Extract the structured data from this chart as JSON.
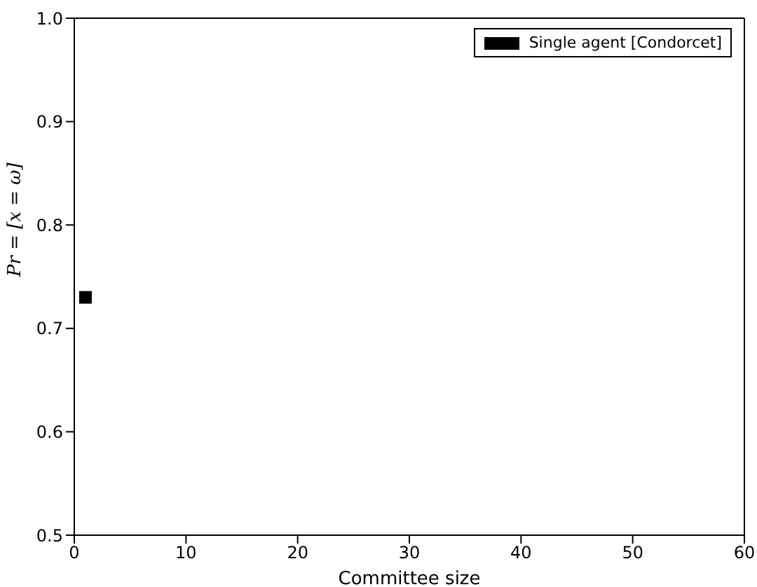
{
  "chart_data": {
    "type": "scatter",
    "xlabel": "Committee size",
    "ylabel": "Pr = [x = ω]",
    "x": [
      1
    ],
    "series": [
      {
        "name": "Single agent [Condorcet]",
        "color": "#000000",
        "values": [
          0.73
        ]
      }
    ],
    "xlim": [
      0,
      60
    ],
    "xticks": [
      0,
      10,
      20,
      30,
      40,
      50,
      60
    ],
    "ylim": [
      0.5,
      1.0
    ],
    "yticks": [
      0.5,
      0.6,
      0.7,
      0.8,
      0.9,
      {
        "value": 1,
        "label": "1.0"
      }
    ],
    "marker": "square",
    "legend": "top right"
  }
}
